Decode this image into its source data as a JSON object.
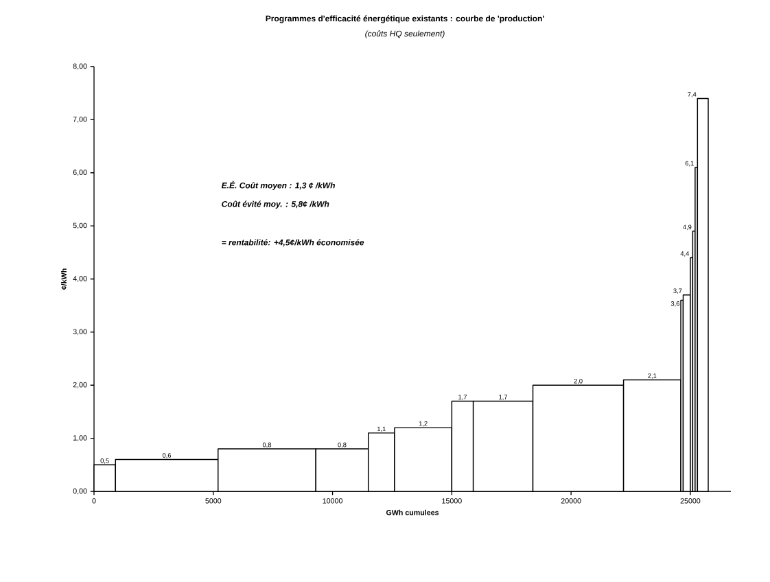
{
  "chart_data": {
    "type": "histogram",
    "title": "Programmes d'efficacité énergétique existants : courbe de 'production'",
    "subtitle": "(coûts HQ seulement)",
    "xlabel": "GWh cumulees",
    "ylabel": "¢/kWh",
    "bins": [
      0,
      900,
      5200,
      9300,
      11500,
      12600,
      15000,
      15900,
      18400,
      22200,
      24600,
      24700,
      25000,
      25100,
      25200,
      25300,
      25750
    ],
    "values": [
      0.5,
      0.6,
      0.8,
      0.8,
      1.1,
      1.2,
      1.7,
      1.7,
      2.0,
      2.1,
      3.6,
      3.7,
      4.4,
      4.9,
      6.1,
      7.4
    ],
    "value_labels": [
      "0,5",
      "0,6",
      "0,8",
      "0,8",
      "1,1",
      "1,2",
      "1,7",
      "1,7",
      "2,0",
      "2,1",
      "3,6",
      "3,7",
      "4,4",
      "4,9",
      "6,1",
      "7,4"
    ],
    "color": "#ffffff",
    "xlim": [
      0,
      26700
    ],
    "xticks": [
      0,
      5000,
      10000,
      15000,
      20000,
      25000
    ],
    "ylim": [
      0,
      8
    ],
    "yticks": [
      {
        "value": 0,
        "label": "0,00"
      },
      {
        "value": 1,
        "label": "1,00"
      },
      {
        "value": 2,
        "label": "2,00"
      },
      {
        "value": 3,
        "label": "3,00"
      },
      {
        "value": 4,
        "label": "4,00"
      },
      {
        "value": 5,
        "label": "5,00"
      },
      {
        "value": 6,
        "label": "6,00"
      },
      {
        "value": 7,
        "label": "7,00"
      },
      {
        "value": 8,
        "label": "8,00"
      }
    ],
    "annotations": [
      "E.É. Coût moyen :  1,3 ¢ /kWh",
      "Coût évité moy. :   5,8¢ /kWh",
      "= rentabilité: +4,5¢/kWh économisée"
    ]
  }
}
